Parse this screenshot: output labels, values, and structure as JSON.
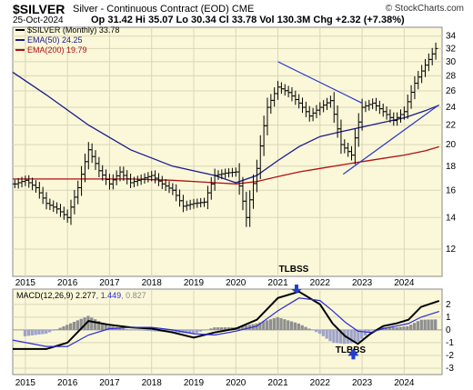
{
  "header": {
    "symbol": "$SILVER",
    "description": "Silver - Continuous Contract (EOD)",
    "exchange": "CME",
    "credit": "© StockCharts.com",
    "date": "25-Oct-2024",
    "quote": "Op 31.42  Hi 35.07  Lo 30.34  Cl 33.78  Vol 130.3M  Chg +2.32 (+7.38%)"
  },
  "chart_data": [
    {
      "type": "bar",
      "subtype": "ohlc",
      "title": "$SILVER (Monthly) 33.78",
      "x_axis_labels": [
        "2015",
        "2016",
        "2017",
        "2018",
        "2019",
        "2020",
        "2021",
        "2022",
        "2023",
        "2024"
      ],
      "x_range": [
        2014.7,
        2024.9
      ],
      "y_axis_labels": [
        "12",
        "14",
        "16",
        "18",
        "20",
        "22",
        "24",
        "26",
        "28",
        "30",
        "32",
        "34"
      ],
      "y_range": [
        10.5,
        35.5
      ],
      "y_scale": "log",
      "grid": true,
      "legend": [
        {
          "name": "$SILVER (Monthly) 33.78",
          "color": "#000000"
        },
        {
          "name": "EMA(50) 24.25",
          "color": "#1a1a8c"
        },
        {
          "name": "EMA(200) 19.79",
          "color": "#b01010"
        }
      ],
      "price_series": {
        "name": "$SILVER (Monthly) 33.78",
        "x": [
          2014.75,
          2015.0,
          2015.25,
          2015.5,
          2015.75,
          2016.0,
          2016.25,
          2016.5,
          2016.75,
          2017.0,
          2017.25,
          2017.5,
          2017.75,
          2018.0,
          2018.25,
          2018.5,
          2018.75,
          2019.0,
          2019.25,
          2019.5,
          2019.75,
          2020.0,
          2020.25,
          2020.5,
          2020.75,
          2021.0,
          2021.25,
          2021.5,
          2021.75,
          2022.0,
          2022.25,
          2022.5,
          2022.75,
          2023.0,
          2023.25,
          2023.5,
          2023.75,
          2024.0,
          2024.25,
          2024.5,
          2024.75,
          2024.83
        ],
        "values": [
          16.5,
          16.8,
          16.2,
          15.0,
          14.6,
          14.0,
          16.2,
          19.5,
          17.6,
          16.5,
          17.5,
          16.6,
          16.9,
          17.2,
          16.5,
          16.0,
          14.8,
          15.0,
          15.1,
          17.2,
          17.4,
          17.5,
          14.0,
          17.8,
          24.0,
          26.5,
          25.8,
          24.5,
          23.0,
          24.0,
          24.8,
          20.0,
          19.0,
          24.0,
          24.5,
          23.5,
          22.5,
          23.5,
          27.0,
          29.5,
          32.0,
          33.78
        ]
      },
      "series": [
        {
          "name": "EMA(50) 24.25",
          "x": [
            2014.7,
            2015.5,
            2016.5,
            2017.5,
            2018.5,
            2019.5,
            2020.0,
            2020.5,
            2021.0,
            2021.5,
            2022.0,
            2022.5,
            2023.0,
            2023.5,
            2024.0,
            2024.5,
            2024.83
          ],
          "values": [
            28.5,
            25.5,
            22.0,
            19.5,
            18.0,
            17.2,
            16.6,
            17.2,
            18.5,
            19.8,
            20.8,
            21.3,
            21.8,
            22.3,
            22.8,
            23.6,
            24.25
          ]
        },
        {
          "name": "EMA(200) 19.79",
          "x": [
            2014.7,
            2015.5,
            2016.5,
            2017.5,
            2018.5,
            2019.5,
            2020.0,
            2020.5,
            2021.0,
            2021.5,
            2022.0,
            2022.5,
            2023.0,
            2023.5,
            2024.0,
            2024.5,
            2024.83
          ],
          "values": [
            16.9,
            16.9,
            16.9,
            16.9,
            16.8,
            16.6,
            16.5,
            16.7,
            17.1,
            17.5,
            17.8,
            18.1,
            18.4,
            18.7,
            19.0,
            19.4,
            19.79
          ]
        }
      ],
      "trendlines": [
        {
          "x": [
            2021.0,
            2023.0
          ],
          "values": [
            30.0,
            24.5
          ]
        },
        {
          "x": [
            2022.55,
            2024.8
          ],
          "values": [
            17.3,
            24.2
          ]
        }
      ]
    },
    {
      "type": "line",
      "title": "MACD(12,26,9) 2.277, 1.449, 0.827",
      "title_values": [
        "MACD(12,26,9)",
        "2.277",
        "1.449",
        "0.827"
      ],
      "x_axis_labels": [
        "2015",
        "2016",
        "2017",
        "2018",
        "2019",
        "2020",
        "2021",
        "2022",
        "2023",
        "2024"
      ],
      "x_range": [
        2014.7,
        2024.9
      ],
      "y_axis_labels": [
        "-3",
        "-2",
        "-1",
        "0",
        "1",
        "2"
      ],
      "y_range": [
        -3.5,
        3.2
      ],
      "grid": true,
      "series": [
        {
          "name": "MACD",
          "x": [
            2014.7,
            2015.5,
            2016.0,
            2016.5,
            2017.0,
            2017.5,
            2018.0,
            2018.5,
            2019.0,
            2019.5,
            2020.0,
            2020.5,
            2021.0,
            2021.5,
            2022.0,
            2022.3,
            2022.6,
            2022.9,
            2023.2,
            2023.5,
            2023.8,
            2024.1,
            2024.4,
            2024.83
          ],
          "values": [
            -1.5,
            -1.5,
            -1.0,
            0.7,
            0.4,
            0.2,
            0.1,
            -0.2,
            -0.6,
            -0.2,
            0.1,
            0.8,
            2.5,
            3.0,
            2.0,
            0.5,
            -0.5,
            -1.1,
            -0.3,
            0.3,
            0.5,
            0.8,
            1.8,
            2.277
          ]
        },
        {
          "name": "Signal",
          "x": [
            2014.7,
            2015.5,
            2016.0,
            2016.5,
            2017.0,
            2017.5,
            2018.0,
            2018.5,
            2019.0,
            2019.5,
            2020.0,
            2020.5,
            2021.0,
            2021.5,
            2022.0,
            2022.3,
            2022.6,
            2022.9,
            2023.2,
            2023.5,
            2023.8,
            2024.1,
            2024.4,
            2024.83
          ],
          "values": [
            -0.8,
            -1.3,
            -1.3,
            -0.4,
            0.1,
            0.2,
            0.2,
            0.0,
            -0.3,
            -0.4,
            -0.1,
            0.3,
            1.5,
            2.5,
            2.3,
            1.5,
            0.6,
            -0.1,
            -0.2,
            0.1,
            0.3,
            0.5,
            1.0,
            1.449
          ]
        }
      ],
      "histogram": {
        "name": "Histogram",
        "x": [
          2015.0,
          2015.5,
          2016.0,
          2016.5,
          2017.0,
          2017.5,
          2018.0,
          2018.5,
          2019.0,
          2019.5,
          2020.0,
          2020.5,
          2021.0,
          2021.5,
          2022.0,
          2022.3,
          2022.6,
          2022.9,
          2023.2,
          2023.5,
          2023.8,
          2024.1,
          2024.4,
          2024.83
        ],
        "values": [
          -0.5,
          -0.3,
          0.4,
          1.1,
          0.3,
          0.0,
          -0.1,
          -0.2,
          -0.3,
          0.2,
          0.2,
          0.5,
          1.0,
          0.5,
          -0.3,
          -1.0,
          -1.1,
          -1.0,
          -0.1,
          0.2,
          0.2,
          0.3,
          0.8,
          0.827
        ]
      },
      "annotations": [
        {
          "text": "TLBSS",
          "x": 2021.55,
          "y": 3.0
        },
        {
          "text": "TLBBS",
          "x": 2022.9,
          "y": -1.1
        }
      ]
    }
  ]
}
